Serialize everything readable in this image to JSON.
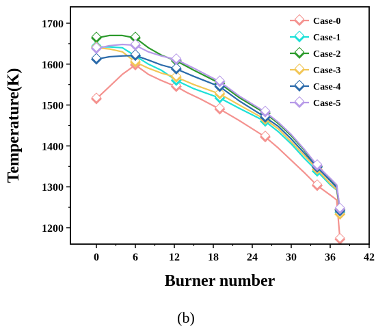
{
  "chart_data": {
    "type": "line",
    "xlabel": "Burner number",
    "ylabel": "Temperature(K)",
    "caption": "(b)",
    "xlim": [
      -4,
      42
    ],
    "ylim": [
      1160,
      1740
    ],
    "x_ticks": [
      0,
      6,
      12,
      18,
      24,
      30,
      36,
      42
    ],
    "x_tick_labels": [
      "0",
      "6",
      "12",
      "18",
      "24",
      "30",
      "36",
      "42"
    ],
    "y_ticks": [
      1200,
      1300,
      1400,
      1500,
      1600,
      1700
    ],
    "y_tick_labels": [
      "1200",
      "1300",
      "1400",
      "1500",
      "1600",
      "1700"
    ],
    "grid": false,
    "legend_position": "top-right",
    "series": [
      {
        "name": "Case-0",
        "color": "#f4928f",
        "line": [
          [
            0,
            1515
          ],
          [
            2,
            1545
          ],
          [
            4,
            1575
          ],
          [
            6,
            1598
          ],
          [
            8,
            1575
          ],
          [
            10,
            1560
          ],
          [
            12.3,
            1545
          ],
          [
            14,
            1530
          ],
          [
            16,
            1515
          ],
          [
            19,
            1490
          ],
          [
            22,
            1462
          ],
          [
            26,
            1422
          ],
          [
            28,
            1395
          ],
          [
            30,
            1365
          ],
          [
            32,
            1335
          ],
          [
            34,
            1303
          ],
          [
            36,
            1280
          ],
          [
            37,
            1268
          ],
          [
            37.5,
            1172
          ]
        ],
        "markers": [
          [
            0,
            1515
          ],
          [
            6,
            1598
          ],
          [
            12.3,
            1545
          ],
          [
            19,
            1490
          ],
          [
            26,
            1422
          ],
          [
            34,
            1303
          ],
          [
            37.5,
            1172
          ]
        ]
      },
      {
        "name": "Case-1",
        "color": "#1de0d8",
        "line": [
          [
            0,
            1642
          ],
          [
            2,
            1642
          ],
          [
            4,
            1640
          ],
          [
            6,
            1620
          ],
          [
            8,
            1600
          ],
          [
            10,
            1585
          ],
          [
            12.3,
            1560
          ],
          [
            15,
            1540
          ],
          [
            19,
            1517
          ],
          [
            22,
            1492
          ],
          [
            26,
            1460
          ],
          [
            28,
            1435
          ],
          [
            30,
            1405
          ],
          [
            32,
            1370
          ],
          [
            34,
            1338
          ],
          [
            36,
            1305
          ],
          [
            37,
            1292
          ],
          [
            37.5,
            1237
          ]
        ],
        "markers": [
          [
            0,
            1642
          ],
          [
            6,
            1620
          ],
          [
            12.3,
            1560
          ],
          [
            19,
            1517
          ],
          [
            26,
            1460
          ],
          [
            34,
            1338
          ],
          [
            37.5,
            1237
          ]
        ]
      },
      {
        "name": "Case-2",
        "color": "#2b9a2b",
        "line": [
          [
            0,
            1664
          ],
          [
            2,
            1670
          ],
          [
            4,
            1670
          ],
          [
            6,
            1664
          ],
          [
            8,
            1640
          ],
          [
            10,
            1622
          ],
          [
            12.3,
            1608
          ],
          [
            15,
            1585
          ],
          [
            19,
            1553
          ],
          [
            22,
            1518
          ],
          [
            26,
            1480
          ],
          [
            28,
            1455
          ],
          [
            30,
            1425
          ],
          [
            32,
            1390
          ],
          [
            34,
            1350
          ],
          [
            36,
            1318
          ],
          [
            37,
            1303
          ],
          [
            37.5,
            1244
          ]
        ],
        "markers": [
          [
            0,
            1664
          ],
          [
            6,
            1664
          ],
          [
            12.3,
            1608
          ],
          [
            19,
            1553
          ],
          [
            26,
            1480
          ],
          [
            34,
            1350
          ],
          [
            37.5,
            1244
          ]
        ]
      },
      {
        "name": "Case-3",
        "color": "#f2c655",
        "line": [
          [
            0,
            1640
          ],
          [
            2,
            1637
          ],
          [
            4,
            1630
          ],
          [
            6,
            1605
          ],
          [
            8,
            1590
          ],
          [
            10,
            1578
          ],
          [
            12.3,
            1568
          ],
          [
            15,
            1550
          ],
          [
            19,
            1527
          ],
          [
            22,
            1500
          ],
          [
            26,
            1465
          ],
          [
            28,
            1442
          ],
          [
            30,
            1410
          ],
          [
            32,
            1377
          ],
          [
            34,
            1343
          ],
          [
            36,
            1308
          ],
          [
            37,
            1293
          ],
          [
            37.5,
            1233
          ]
        ],
        "markers": [
          [
            0,
            1640
          ],
          [
            6,
            1605
          ],
          [
            12.3,
            1568
          ],
          [
            19,
            1527
          ],
          [
            26,
            1465
          ],
          [
            34,
            1343
          ],
          [
            37.5,
            1233
          ]
        ]
      },
      {
        "name": "Case-4",
        "color": "#2a6aaa",
        "line": [
          [
            0,
            1612
          ],
          [
            2,
            1618
          ],
          [
            4,
            1620
          ],
          [
            6,
            1621
          ],
          [
            8,
            1610
          ],
          [
            10,
            1598
          ],
          [
            12.3,
            1588
          ],
          [
            15,
            1570
          ],
          [
            19,
            1545
          ],
          [
            22,
            1510
          ],
          [
            26,
            1470
          ],
          [
            28,
            1448
          ],
          [
            30,
            1417
          ],
          [
            32,
            1383
          ],
          [
            34,
            1348
          ],
          [
            36,
            1315
          ],
          [
            37,
            1298
          ],
          [
            37.5,
            1241
          ]
        ],
        "markers": [
          [
            0,
            1612
          ],
          [
            6,
            1621
          ],
          [
            12.3,
            1588
          ],
          [
            19,
            1545
          ],
          [
            26,
            1470
          ],
          [
            34,
            1348
          ],
          [
            37.5,
            1241
          ]
        ]
      },
      {
        "name": "Case-5",
        "color": "#b79ae8",
        "line": [
          [
            0,
            1638
          ],
          [
            2,
            1645
          ],
          [
            4,
            1648
          ],
          [
            6,
            1646
          ],
          [
            8,
            1630
          ],
          [
            10,
            1620
          ],
          [
            12.3,
            1611
          ],
          [
            15,
            1590
          ],
          [
            19,
            1557
          ],
          [
            22,
            1522
          ],
          [
            26,
            1483
          ],
          [
            28,
            1458
          ],
          [
            30,
            1428
          ],
          [
            32,
            1392
          ],
          [
            34,
            1352
          ],
          [
            36,
            1321
          ],
          [
            37,
            1305
          ],
          [
            37.5,
            1246
          ]
        ],
        "markers": [
          [
            0,
            1638
          ],
          [
            6,
            1646
          ],
          [
            12.3,
            1611
          ],
          [
            19,
            1557
          ],
          [
            26,
            1483
          ],
          [
            34,
            1352
          ],
          [
            37.5,
            1246
          ]
        ]
      }
    ]
  }
}
